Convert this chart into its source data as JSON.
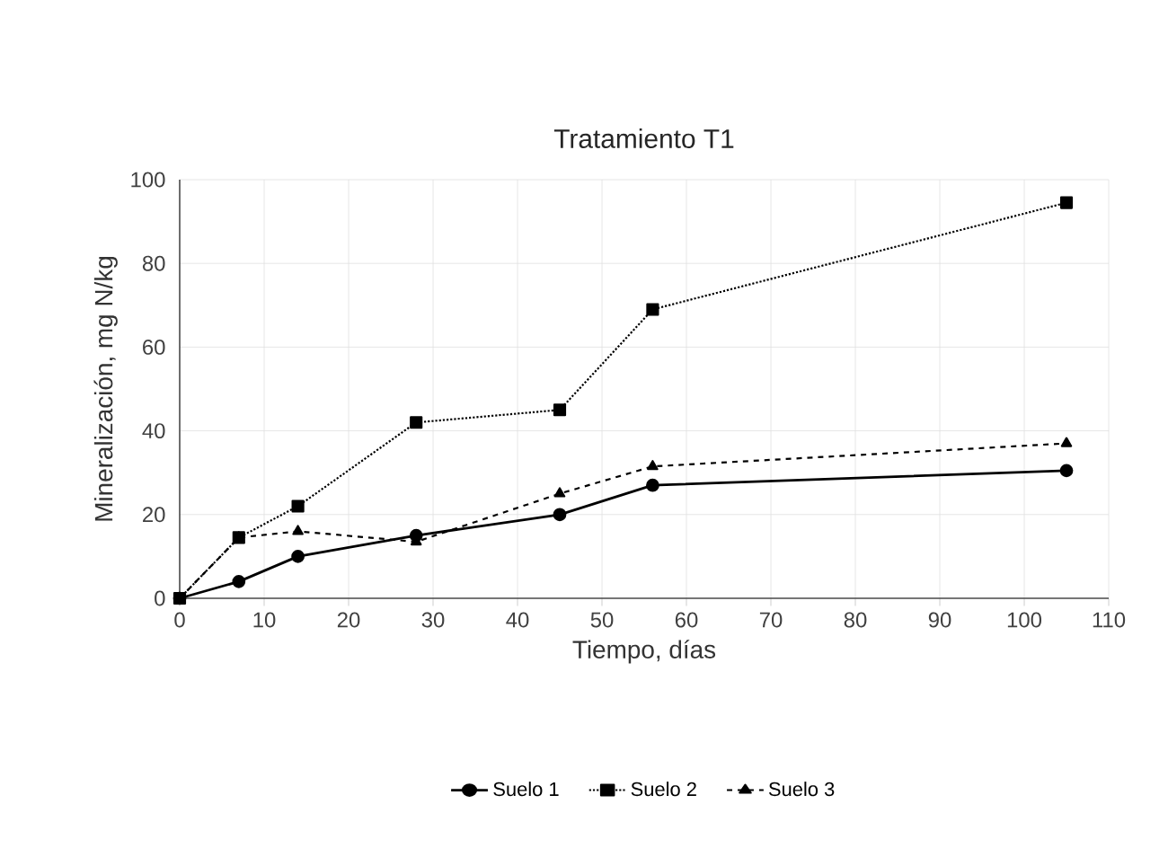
{
  "chart_data": {
    "type": "line",
    "title": "Tratamiento T1",
    "xlabel": "Tiempo, días",
    "ylabel": "Mineralización, mg N/kg",
    "x": [
      0,
      7,
      14,
      28,
      45,
      56,
      105
    ],
    "series": [
      {
        "name": "Suelo 1",
        "color": "#000000",
        "marker": "circle",
        "line_style": "solid",
        "values": [
          0,
          4,
          10,
          15,
          20,
          27,
          30.5
        ]
      },
      {
        "name": "Suelo 2",
        "color": "#000000",
        "marker": "square",
        "line_style": "dotted",
        "values": [
          0,
          14.5,
          22,
          42,
          45,
          69,
          94.5
        ]
      },
      {
        "name": "Suelo 3",
        "color": "#000000",
        "marker": "triangle",
        "line_style": "dashed",
        "values": [
          0,
          14.5,
          16,
          13.5,
          25,
          31.5,
          37
        ]
      }
    ],
    "xlim": [
      0,
      110
    ],
    "xticks": [
      0,
      10,
      20,
      30,
      40,
      50,
      60,
      70,
      80,
      90,
      100,
      110
    ],
    "ylim": [
      0,
      100
    ],
    "yticks": [
      0,
      20,
      40,
      60,
      80,
      100
    ],
    "grid": true,
    "legend": "bottom"
  }
}
